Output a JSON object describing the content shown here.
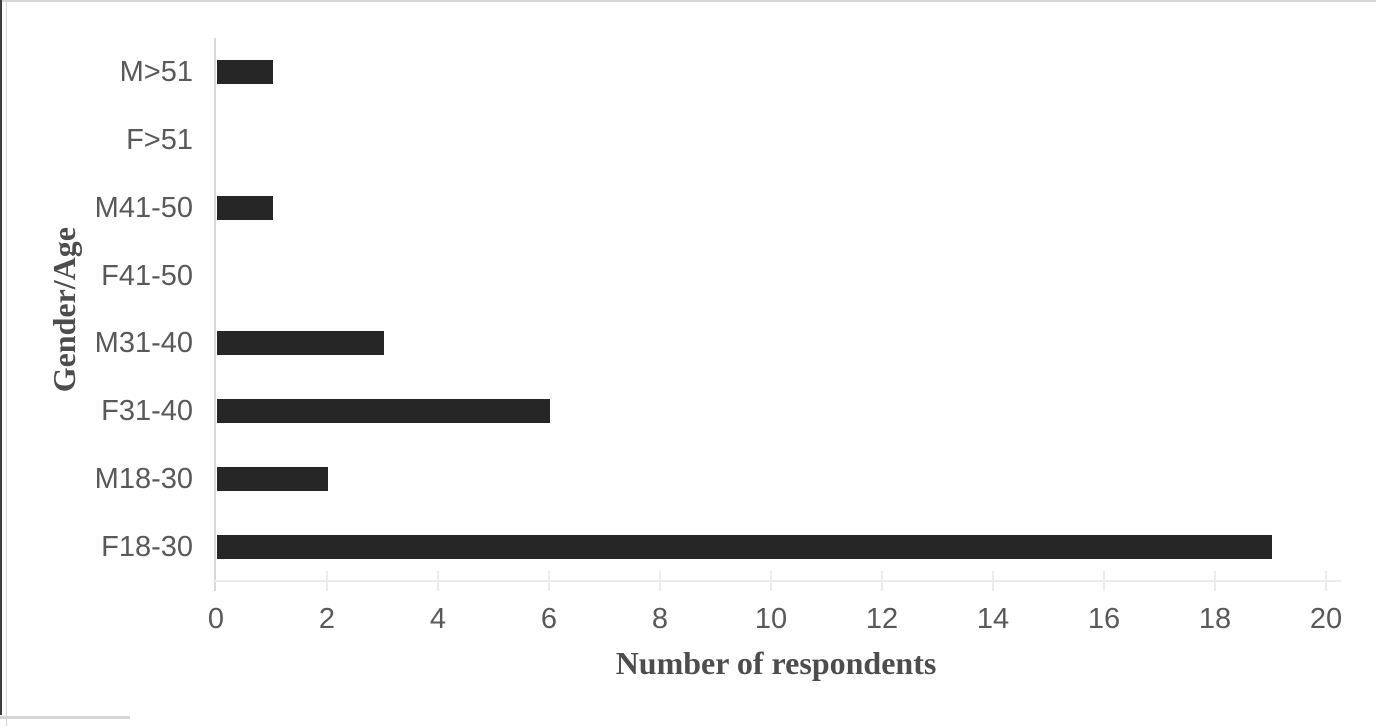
{
  "page": {
    "background": "#ffffff",
    "top_edge_color": "#d6d6d6",
    "left_edge_color": "#3d3d3d",
    "inner_rule_color": "#d9d9d9"
  },
  "chart_data": {
    "type": "bar",
    "orientation": "horizontal",
    "title": "",
    "xlabel": "Number of respondents",
    "ylabel": "Gender/Age",
    "categories": [
      "M>51",
      "F>51",
      "M41-50",
      "F41-50",
      "M31-40",
      "F31-40",
      "M18-30",
      "F18-30"
    ],
    "values": [
      1,
      0,
      1,
      0,
      3,
      6,
      2,
      19
    ],
    "xlim": [
      0,
      20
    ],
    "xticks": [
      0,
      2,
      4,
      6,
      8,
      10,
      12,
      14,
      16,
      18,
      20
    ],
    "grid": false,
    "legend": false,
    "category_order": "top-to-bottom",
    "bar_color": "#262626",
    "category_axis_line_color": "#d9d9d9",
    "value_axis_line_color": "#ececec",
    "tick_label_color": "#595959",
    "category_label_color": "#595959",
    "axis_title_color": "#4d4d4d"
  }
}
